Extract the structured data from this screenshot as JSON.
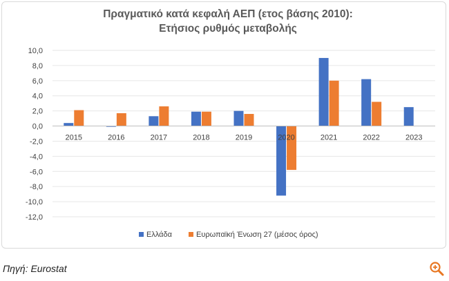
{
  "chart_data": {
    "type": "bar",
    "title": [
      "Πραγματικό κατά κεφαλή ΑΕΠ (ετος βάσης 2010):",
      "Ετήσιος ρυθμός μεταβολής"
    ],
    "categories": [
      "2015",
      "2016",
      "2017",
      "2018",
      "2019",
      "2020",
      "2021",
      "2022",
      "2023"
    ],
    "series": [
      {
        "name": "Ελλάδα",
        "color": "#4472C4",
        "values": [
          0.4,
          -0.1,
          1.3,
          1.9,
          2.0,
          -9.2,
          9.0,
          6.2,
          2.5
        ]
      },
      {
        "name": "Ευρωπαϊκή Ένωση 27 (μέσος όρος)",
        "color": "#ED7D31",
        "values": [
          2.1,
          1.7,
          2.6,
          1.9,
          1.6,
          -5.8,
          6.0,
          3.2,
          null
        ]
      }
    ],
    "ylim": [
      -12,
      10
    ],
    "yticks": [
      "10,0",
      "8,0",
      "6,0",
      "4,0",
      "2,0",
      "0,0",
      "-2,0",
      "-4,0",
      "-6,0",
      "-8,0",
      "-10,0",
      "-12,0"
    ],
    "ytick_values": [
      10,
      8,
      6,
      4,
      2,
      0,
      -2,
      -4,
      -6,
      -8,
      -10,
      -12
    ],
    "xlabel": "",
    "ylabel": "",
    "legend": "bottom"
  },
  "source_note": "Πηγή: Eurostat",
  "icons": {
    "zoom": "zoom-in-icon"
  }
}
